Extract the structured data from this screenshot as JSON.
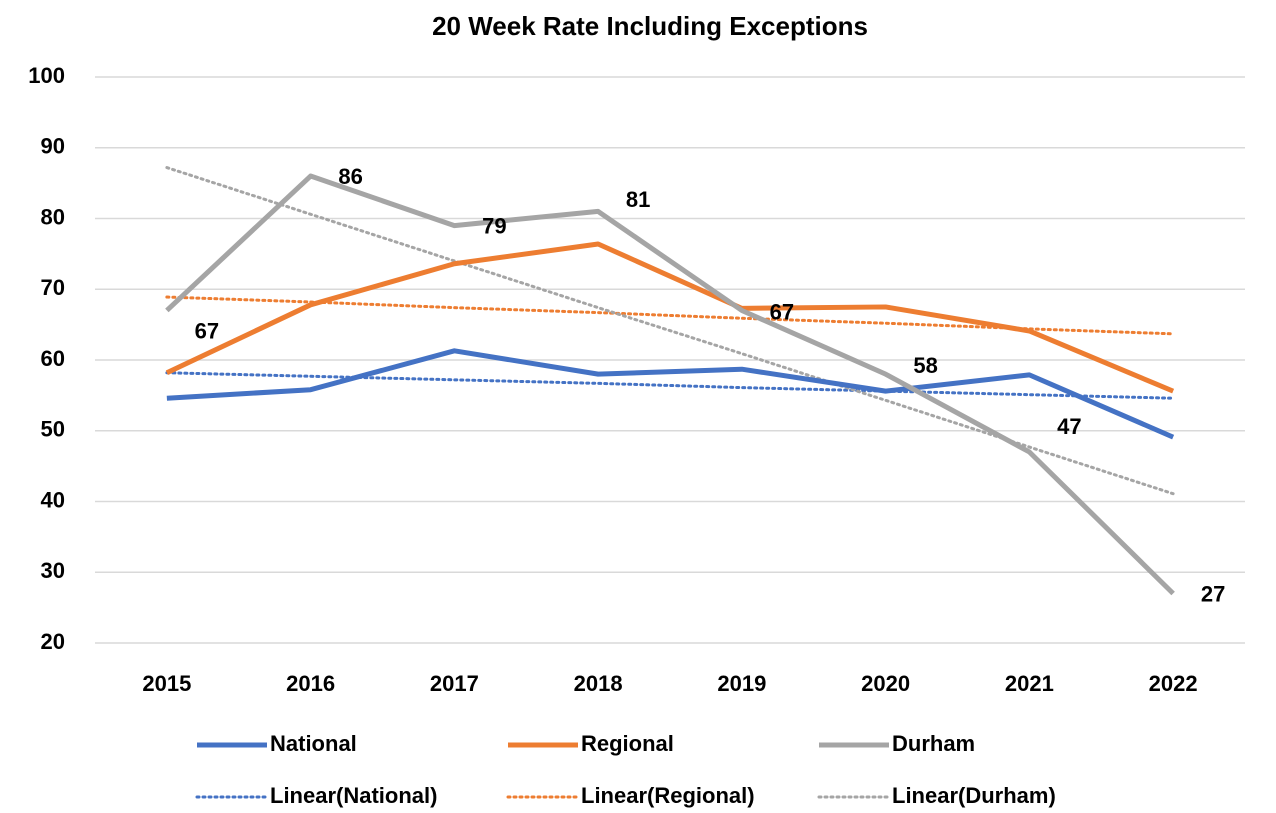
{
  "chart_data": {
    "type": "line",
    "title": "20 Week Rate Including Exceptions",
    "categories": [
      "2015",
      "2016",
      "2017",
      "2018",
      "2019",
      "2020",
      "2021",
      "2022"
    ],
    "ylim": [
      20,
      100
    ],
    "yticks": [
      20,
      30,
      40,
      50,
      60,
      70,
      80,
      90,
      100
    ],
    "grid": true,
    "series": [
      {
        "name": "National",
        "color": "#4472c4",
        "values": [
          54.6,
          55.8,
          61.3,
          58.0,
          58.7,
          55.6,
          57.9,
          49.1
        ]
      },
      {
        "name": "Regional",
        "color": "#ed7d31",
        "values": [
          58.2,
          67.8,
          73.6,
          76.4,
          67.3,
          67.5,
          64.1,
          55.6
        ]
      },
      {
        "name": "Durham",
        "color": "#a5a5a5",
        "values": [
          67,
          86,
          79,
          81,
          67,
          58,
          47,
          27
        ],
        "data_labels": true
      },
      {
        "name": "Linear(National)",
        "color": "#4472c4",
        "dotted": true,
        "values": [
          58.2,
          57.7,
          57.2,
          56.7,
          56.1,
          55.6,
          55.1,
          54.6
        ]
      },
      {
        "name": "Linear(Regional)",
        "color": "#ed7d31",
        "dotted": true,
        "values": [
          68.9,
          68.2,
          67.4,
          66.7,
          65.9,
          65.2,
          64.4,
          63.7
        ]
      },
      {
        "name": "Linear(Durham)",
        "color": "#a5a5a5",
        "dotted": true,
        "values": [
          87.2,
          80.6,
          74.0,
          67.4,
          60.9,
          54.3,
          47.7,
          41.1
        ]
      }
    ]
  }
}
